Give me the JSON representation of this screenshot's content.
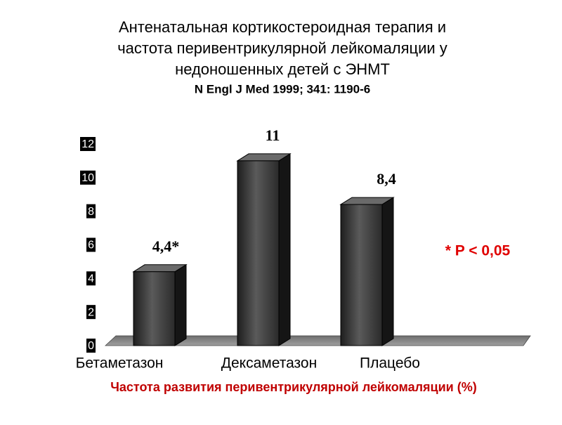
{
  "chart_data": {
    "type": "bar3d",
    "title": [
      "Антенатальная кортикостероидная терапия и",
      "частота перивентрикулярной лейкомаляции у",
      "недоношенных детей с ЭНМТ"
    ],
    "subtitle": "N Engl J Med 1999; 341: 1190-6",
    "categories": [
      "Бетаметазон",
      "Дексаметазон",
      "Плацебо"
    ],
    "values": [
      4.4,
      11,
      8.4
    ],
    "value_labels": [
      "4,4*",
      "11",
      "8,4"
    ],
    "color": "#3a3a3a",
    "ylim": [
      0,
      12
    ],
    "yticks": [
      0,
      2,
      4,
      6,
      8,
      10,
      12
    ],
    "annotation": "* P < 0,05",
    "xlabel": "Частота развития перивентрикулярной лейкомаляции (%)"
  }
}
